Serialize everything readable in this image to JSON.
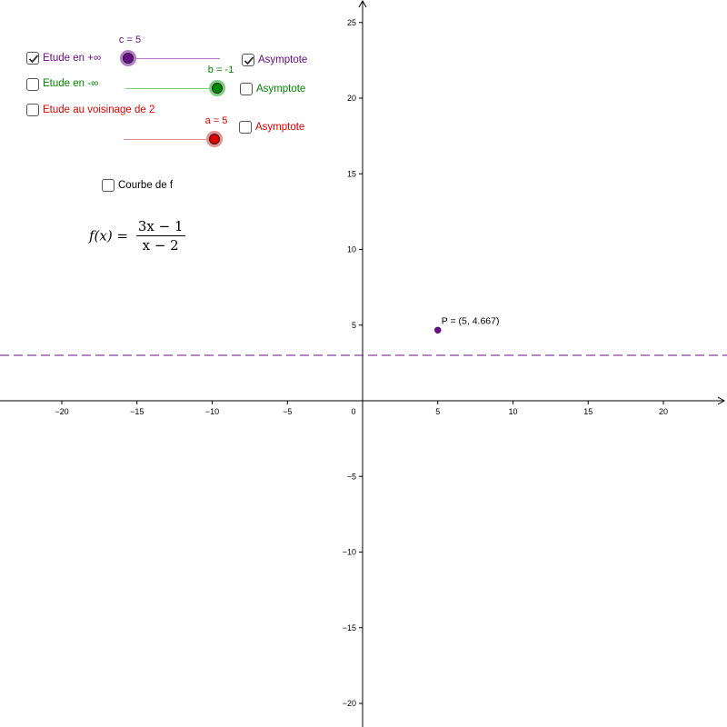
{
  "colors": {
    "purple": "#6b0d8a",
    "purple_light": "#b57bc9",
    "green": "#008800",
    "green_light": "#7ccf7c",
    "red": "#e00000",
    "red_light": "#e79090",
    "point": "#4a1060",
    "axis": "#000000"
  },
  "controls": {
    "study_plus_inf": {
      "label": "Etude en +∞",
      "checked": true
    },
    "study_minus_inf": {
      "label": "Etude en -∞",
      "checked": false
    },
    "study_near_2": {
      "label": "Etude au voisinage de 2",
      "checked": false
    },
    "asymptote_c": {
      "label": "Asymptote",
      "checked": true
    },
    "asymptote_b": {
      "label": "Asymptote",
      "checked": false
    },
    "asymptote_a": {
      "label": "Asymptote",
      "checked": false
    },
    "curve": {
      "label": "Courbe de f",
      "checked": false
    }
  },
  "sliders": {
    "c": {
      "label": "c = 5",
      "value": 5
    },
    "b": {
      "label": "b = -1",
      "value": -1
    },
    "a": {
      "label": "a = 5",
      "value": 5
    }
  },
  "formula": {
    "lhs": "f(x) =",
    "numerator": "3x − 1",
    "denominator": "x − 2"
  },
  "graph": {
    "x_ticks": [
      "−20",
      "−15",
      "−10",
      "−5",
      "0",
      "5",
      "10",
      "15",
      "20"
    ],
    "x_tick_values": [
      -20,
      -15,
      -10,
      -5,
      0,
      5,
      10,
      15,
      20
    ],
    "y_ticks": [
      "25",
      "20",
      "15",
      "10",
      "5",
      "−5",
      "−10",
      "−15",
      "−20"
    ],
    "y_tick_values": [
      25,
      20,
      15,
      10,
      5,
      -5,
      -10,
      -15,
      -20
    ],
    "horizontal_asymptote_y": 3,
    "point": {
      "label": "P = (5, 4.667)",
      "x": 5,
      "y": 4.667
    }
  }
}
